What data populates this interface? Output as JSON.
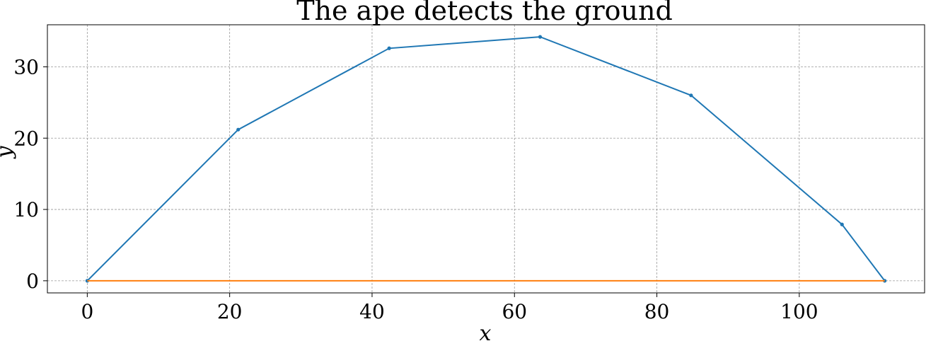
{
  "chart_data": {
    "type": "line",
    "title": "The ape detects the ground",
    "xlabel": "x",
    "ylabel": "y",
    "xlim": [
      -5.6,
      117.6
    ],
    "ylim": [
      -1.7,
      35.9
    ],
    "x_ticks": [
      0,
      20,
      40,
      60,
      80,
      100
    ],
    "y_ticks": [
      0,
      10,
      20,
      30
    ],
    "grid": true,
    "series": [
      {
        "color": "#1f77b4",
        "markers": true,
        "x": [
          0,
          21.2,
          42.4,
          63.6,
          84.8,
          106.0,
          112.0
        ],
        "y": [
          0,
          21.2,
          32.6,
          34.2,
          26.0,
          7.9,
          0
        ]
      },
      {
        "color": "#ff7f0e",
        "markers": false,
        "x": [
          0,
          112.0
        ],
        "y": [
          0,
          0
        ]
      }
    ]
  }
}
